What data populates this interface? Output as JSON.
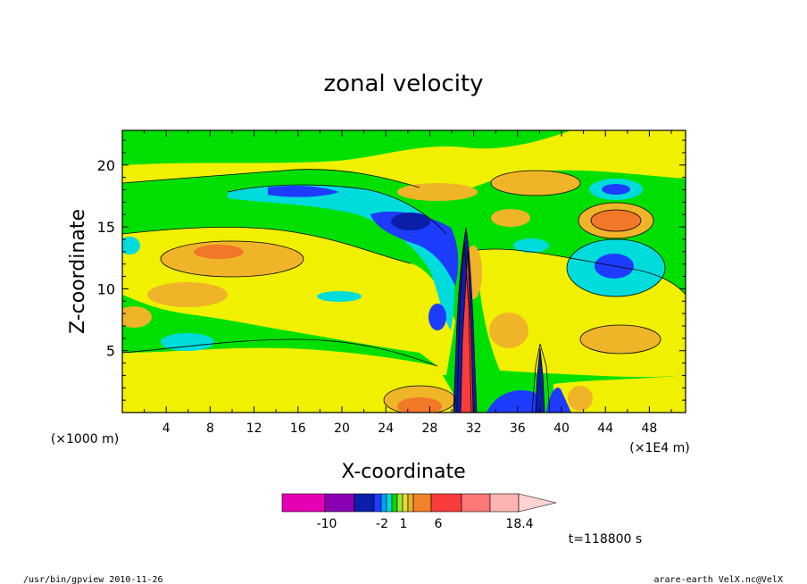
{
  "chart_data": {
    "type": "heatmap",
    "title": "zonal velocity",
    "xlabel": "X-coordinate",
    "ylabel": "Z-coordinate",
    "x_unit_left": "(×1000 m)",
    "x_unit_right": "(×1E4 m)",
    "x_ticks": [
      "4",
      "8",
      "12",
      "16",
      "20",
      "24",
      "28",
      "32",
      "36",
      "40",
      "44",
      "48"
    ],
    "x_tick_values": [
      4,
      8,
      12,
      16,
      20,
      24,
      28,
      32,
      36,
      40,
      44,
      48
    ],
    "y_ticks": [
      "5",
      "10",
      "15",
      "20"
    ],
    "y_tick_values": [
      5,
      10,
      15,
      20
    ],
    "xlim": [
      0,
      51.3
    ],
    "ylim": [
      0,
      22.8
    ],
    "colorbar": {
      "labels": [
        "-10",
        "-2",
        "1",
        "6",
        "18.4"
      ],
      "label_values": [
        -10,
        -2,
        1,
        6,
        18.4
      ],
      "colors": [
        "#e600b4",
        "#8c00b4",
        "#0a1eaa",
        "#1e3cff",
        "#00a0ff",
        "#00dcdc",
        "#00dc00",
        "#a0e632",
        "#e6dc32",
        "#e6af2d",
        "#f08228",
        "#fa3c3c",
        "#ff7878",
        "#ffb4b4",
        "#ffd2d2"
      ]
    },
    "field_colors": {
      "strong_negative": "#0a1eaa",
      "negative": "#1e3cff",
      "weak_negative": "#00dcdc",
      "near_zero": "#00e000",
      "weak_positive": "#f0f000",
      "positive": "#f0b428",
      "strong_positive": "#f07828",
      "max_positive": "#fa3c3c"
    }
  },
  "annotations": {
    "time": "t=118800 s",
    "program": "/usr/bin/gpview 2010-11-26",
    "source": "arare-earth_VelX.nc@VelX"
  }
}
